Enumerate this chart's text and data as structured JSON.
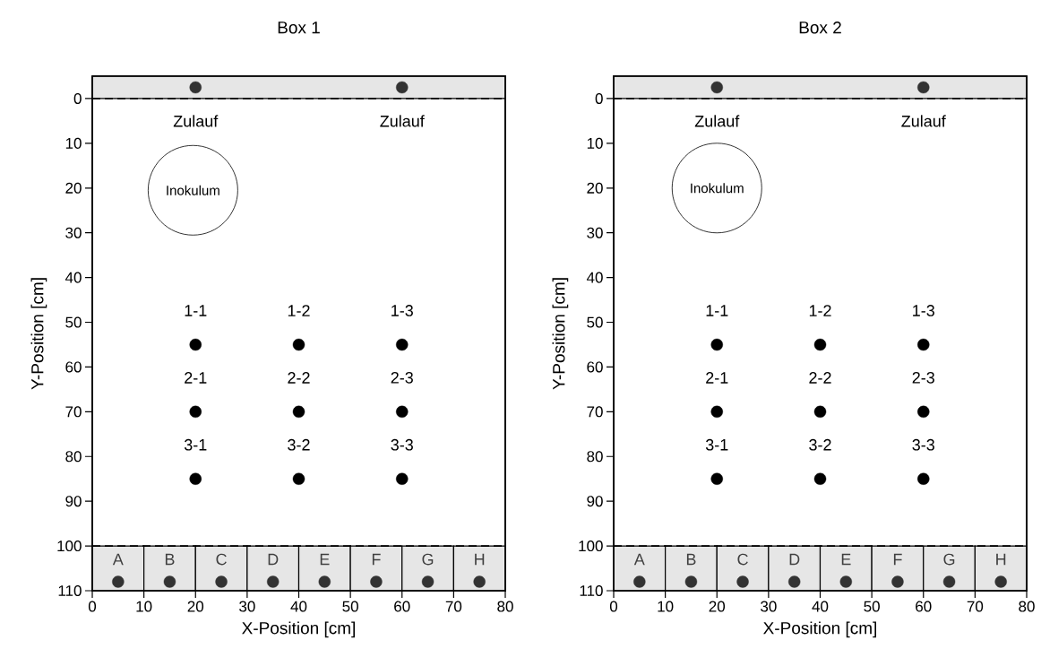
{
  "chart_data": [
    {
      "type": "scatter",
      "title": "Box 1",
      "xlabel": "X-Position [cm]",
      "ylabel": "Y-Position [cm]",
      "xlim": [
        0,
        80
      ],
      "ylim": [
        110,
        -5
      ],
      "xticks": [
        0,
        10,
        20,
        30,
        40,
        50,
        60,
        70,
        80
      ],
      "yticks": [
        0,
        10,
        20,
        30,
        40,
        50,
        60,
        70,
        80,
        90,
        100,
        110
      ],
      "marker": "circle",
      "series": [
        {
          "x": [
            20,
            60
          ],
          "values": [
            -2.5,
            -2.5
          ],
          "color": "#333333"
        },
        {
          "x": [
            20,
            40,
            60,
            20,
            40,
            60,
            20,
            40,
            60
          ],
          "values": [
            55,
            55,
            55,
            70,
            70,
            70,
            85,
            85,
            85
          ],
          "color": "#000000"
        },
        {
          "x": [
            5,
            15,
            25,
            35,
            45,
            55,
            65,
            75
          ],
          "values": [
            108,
            108,
            108,
            108,
            108,
            108,
            108,
            108
          ],
          "color": "#333333"
        },
        {
          "type": "bubble",
          "x": [
            19.5
          ],
          "values": [
            20.5
          ],
          "sizes": [
            1
          ],
          "color": "#000000"
        },
        {
          "type": "bar",
          "x": [
            5,
            15,
            25,
            35,
            45,
            55,
            65,
            75
          ],
          "base": [
            100,
            100,
            100,
            100,
            100,
            100,
            100,
            100
          ],
          "values": [
            10,
            10,
            10,
            10,
            10,
            10,
            10,
            10
          ],
          "color": "#e6e6e6"
        },
        {
          "type": "bar",
          "x": [
            40
          ],
          "base": [
            -5
          ],
          "values": [
            5
          ],
          "color": "#e6e6e6"
        }
      ],
      "ref_lines": [
        {
          "axis": "y",
          "value": 0,
          "line_style": "dashed"
        },
        {
          "axis": "y",
          "value": 100,
          "line_style": "dashed"
        }
      ],
      "annotations": [
        {
          "text": "Zulauf",
          "x": 20,
          "y": -2.5
        },
        {
          "text": "Zulauf",
          "x": 60,
          "y": -2.5
        },
        {
          "text": "Inokulum",
          "x": 19.5,
          "y": 20.5
        },
        {
          "text": "1-1",
          "x": 20,
          "y": 55
        },
        {
          "text": "1-2",
          "x": 40,
          "y": 55
        },
        {
          "text": "1-3",
          "x": 60,
          "y": 55
        },
        {
          "text": "2-1",
          "x": 20,
          "y": 70
        },
        {
          "text": "2-2",
          "x": 40,
          "y": 70
        },
        {
          "text": "2-3",
          "x": 60,
          "y": 70
        },
        {
          "text": "3-1",
          "x": 20,
          "y": 85
        },
        {
          "text": "3-2",
          "x": 40,
          "y": 85
        },
        {
          "text": "3-3",
          "x": 60,
          "y": 85
        },
        {
          "text": "A",
          "x": 5,
          "y": 108
        },
        {
          "text": "B",
          "x": 15,
          "y": 108
        },
        {
          "text": "C",
          "x": 25,
          "y": 108
        },
        {
          "text": "D",
          "x": 35,
          "y": 108
        },
        {
          "text": "E",
          "x": 45,
          "y": 108
        },
        {
          "text": "F",
          "x": 55,
          "y": 108
        },
        {
          "text": "G",
          "x": 65,
          "y": 108
        },
        {
          "text": "H",
          "x": 75,
          "y": 108
        }
      ]
    },
    {
      "type": "scatter",
      "title": "Box 2",
      "xlabel": "X-Position [cm]",
      "ylabel": "Y-Position [cm]",
      "xlim": [
        0,
        80
      ],
      "ylim": [
        110,
        -5
      ],
      "xticks": [
        0,
        10,
        20,
        30,
        40,
        50,
        60,
        70,
        80
      ],
      "yticks": [
        0,
        10,
        20,
        30,
        40,
        50,
        60,
        70,
        80,
        90,
        100,
        110
      ],
      "marker": "circle",
      "series": [
        {
          "x": [
            20,
            60
          ],
          "values": [
            -2.5,
            -2.5
          ],
          "color": "#333333"
        },
        {
          "x": [
            20,
            40,
            60,
            20,
            40,
            60,
            20,
            40,
            60
          ],
          "values": [
            55,
            55,
            55,
            70,
            70,
            70,
            85,
            85,
            85
          ],
          "color": "#000000"
        },
        {
          "x": [
            5,
            15,
            25,
            35,
            45,
            55,
            65,
            75
          ],
          "values": [
            108,
            108,
            108,
            108,
            108,
            108,
            108,
            108
          ],
          "color": "#333333"
        },
        {
          "type": "bubble",
          "x": [
            20
          ],
          "values": [
            20
          ],
          "sizes": [
            1
          ],
          "color": "#000000"
        },
        {
          "type": "bar",
          "x": [
            5,
            15,
            25,
            35,
            45,
            55,
            65,
            75
          ],
          "base": [
            100,
            100,
            100,
            100,
            100,
            100,
            100,
            100
          ],
          "values": [
            10,
            10,
            10,
            10,
            10,
            10,
            10,
            10
          ],
          "color": "#e6e6e6"
        },
        {
          "type": "bar",
          "x": [
            40
          ],
          "base": [
            -5
          ],
          "values": [
            5
          ],
          "color": "#e6e6e6"
        }
      ],
      "ref_lines": [
        {
          "axis": "y",
          "value": 0,
          "line_style": "dashed"
        },
        {
          "axis": "y",
          "value": 100,
          "line_style": "dashed"
        }
      ],
      "annotations": [
        {
          "text": "Zulauf",
          "x": 20,
          "y": -2.5
        },
        {
          "text": "Zulauf",
          "x": 60,
          "y": -2.5
        },
        {
          "text": "Inokulum",
          "x": 20,
          "y": 20
        },
        {
          "text": "1-1",
          "x": 20,
          "y": 55
        },
        {
          "text": "1-2",
          "x": 40,
          "y": 55
        },
        {
          "text": "1-3",
          "x": 60,
          "y": 55
        },
        {
          "text": "2-1",
          "x": 20,
          "y": 70
        },
        {
          "text": "2-2",
          "x": 40,
          "y": 70
        },
        {
          "text": "2-3",
          "x": 60,
          "y": 70
        },
        {
          "text": "3-1",
          "x": 20,
          "y": 85
        },
        {
          "text": "3-2",
          "x": 40,
          "y": 85
        },
        {
          "text": "3-3",
          "x": 60,
          "y": 85
        },
        {
          "text": "A",
          "x": 5,
          "y": 108
        },
        {
          "text": "B",
          "x": 15,
          "y": 108
        },
        {
          "text": "C",
          "x": 25,
          "y": 108
        },
        {
          "text": "D",
          "x": 35,
          "y": 108
        },
        {
          "text": "E",
          "x": 45,
          "y": 108
        },
        {
          "text": "F",
          "x": 55,
          "y": 108
        },
        {
          "text": "G",
          "x": 65,
          "y": 108
        },
        {
          "text": "H",
          "x": 75,
          "y": 108
        }
      ]
    }
  ]
}
